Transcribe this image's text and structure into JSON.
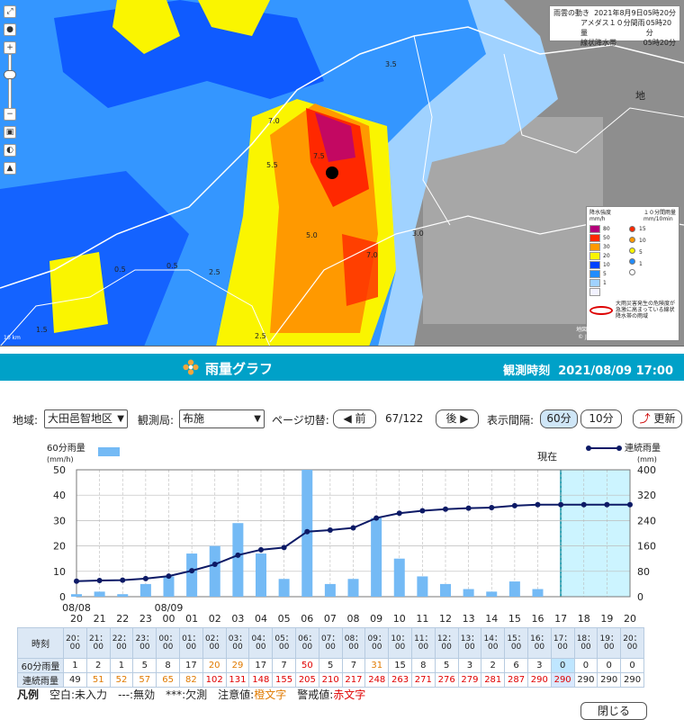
{
  "map": {
    "info_title": "雨雲の動き",
    "info_datetime": "2021年8月9日05時20分",
    "info_amedas_label": "アメダス１０分間雨量",
    "info_amedas_time": "05時20分",
    "info_line_label": "線状降水帯",
    "info_line_time": "05時20分",
    "legend_intensity_title": "降水強度",
    "legend_intensity_unit": "mm/h",
    "legend_amedas_title": "１０分間雨量",
    "legend_amedas_unit": "mm/10min",
    "intensity_levels": [
      {
        "label": "80",
        "color": "#b4007a"
      },
      {
        "label": "50",
        "color": "#ff2800"
      },
      {
        "label": "30",
        "color": "#ff9900"
      },
      {
        "label": "20",
        "color": "#faf500"
      },
      {
        "label": "10",
        "color": "#0041ff"
      },
      {
        "label": "5",
        "color": "#218cff"
      },
      {
        "label": "1",
        "color": "#a0d2ff"
      },
      {
        "label": "",
        "color": "#f2f2ff"
      }
    ],
    "amedas_levels": [
      {
        "label": "15",
        "color": "#ff2800"
      },
      {
        "label": "10",
        "color": "#ff9900"
      },
      {
        "label": "5",
        "color": "#faf500"
      },
      {
        "label": "1",
        "color": "#218cff"
      },
      {
        "label": "",
        "color": "#ffffff"
      }
    ],
    "legend_note": "大雨災害発生の危険度が急激に高まっている線状降水帯の雨域",
    "scale": "10 km",
    "credit_1": "地図出典：地理院タイル（加工して利用）",
    "credit_2": "© Japan Meteorological Agency 2020",
    "labels": [
      "0.5",
      "5.5",
      "7.0",
      "7.5",
      "5.0",
      "7.0",
      "2.5",
      "3.5",
      "0.5",
      "1.5",
      "2.5",
      "3.0",
      "地"
    ]
  },
  "header": {
    "title": "雨量グラフ",
    "observation_label": "観測時刻",
    "observation_time": "2021/08/09 17:00"
  },
  "controls": {
    "region_label": "地域:",
    "region_value": "大田邑智地区",
    "station_label": "観測局:",
    "station_value": "布施",
    "page_label": "ページ切替:",
    "prev_label": "◀ 前",
    "page_position": "67/122",
    "next_label": "後 ▶",
    "interval_label": "表示間隔:",
    "interval_60": "60分",
    "interval_10": "10分",
    "refresh_label": "更新"
  },
  "chart_data": {
    "type": "bar",
    "left_axis_title": "60分雨量",
    "left_axis_unit": "(mm/h)",
    "right_axis_title": "連続雨量",
    "right_axis_unit": "(mm)",
    "now_label": "現在",
    "left_ylim": [
      0,
      50
    ],
    "right_ylim": [
      0,
      400
    ],
    "left_ticks": [
      "0",
      "10",
      "20",
      "30",
      "40",
      "50"
    ],
    "right_ticks": [
      "0",
      "80",
      "160",
      "240",
      "320",
      "400"
    ],
    "x_labels": [
      "20",
      "21",
      "22",
      "23",
      "00",
      "01",
      "02",
      "03",
      "04",
      "05",
      "06",
      "07",
      "08",
      "09",
      "10",
      "11",
      "12",
      "13",
      "14",
      "15",
      "16",
      "17",
      "18",
      "19",
      "20"
    ],
    "date_labels": [
      {
        "text": "08/08",
        "index": 0
      },
      {
        "text": "08/09",
        "index": 4
      }
    ],
    "now_index": 21,
    "hourly_rain": [
      1,
      2,
      1,
      5,
      8,
      17,
      20,
      29,
      17,
      7,
      50,
      5,
      7,
      31,
      15,
      8,
      5,
      3,
      2,
      6,
      3,
      0,
      0,
      0,
      0
    ],
    "cumulative_rain": [
      49,
      51,
      52,
      57,
      65,
      82,
      102,
      131,
      148,
      155,
      205,
      210,
      217,
      248,
      263,
      271,
      276,
      279,
      281,
      287,
      290,
      290,
      290,
      290,
      290
    ],
    "bar_color": "#74baf5",
    "line_color": "#0d1a66"
  },
  "table": {
    "time_header": "時刻",
    "hourly_header": "60分雨量",
    "cumulative_header": "連続雨量",
    "times": [
      "20：00",
      "21：00",
      "22：00",
      "23：00",
      "00：00",
      "01：00",
      "02：00",
      "03：00",
      "04：00",
      "05：00",
      "06：00",
      "07：00",
      "08：00",
      "09：00",
      "10：00",
      "11：00",
      "12：00",
      "13：00",
      "14：00",
      "15：00",
      "16：00",
      "17：00",
      "18：00",
      "19：00",
      "20：00"
    ],
    "hourly": [
      "1",
      "2",
      "1",
      "5",
      "8",
      "17",
      "20",
      "29",
      "17",
      "7",
      "50",
      "5",
      "7",
      "31",
      "15",
      "8",
      "5",
      "3",
      "2",
      "6",
      "3",
      "0",
      "0",
      "0",
      "0"
    ],
    "cumulative": [
      "49",
      "51",
      "52",
      "57",
      "65",
      "82",
      "102",
      "131",
      "148",
      "155",
      "205",
      "210",
      "217",
      "248",
      "263",
      "271",
      "276",
      "279",
      "281",
      "287",
      "290",
      "290",
      "290",
      "290",
      "290"
    ],
    "hourly_class": [
      "",
      "",
      "",
      "",
      "",
      "",
      "warn",
      "warn",
      "",
      "",
      "alert",
      "",
      "",
      "warn",
      "",
      "",
      "",
      "",
      "",
      "",
      "",
      "",
      "",
      "",
      ""
    ],
    "cumulative_class": [
      "",
      "warn",
      "warn",
      "warn",
      "warn",
      "warn",
      "alert",
      "alert",
      "alert",
      "alert",
      "alert",
      "alert",
      "alert",
      "alert",
      "alert",
      "alert",
      "alert",
      "alert",
      "alert",
      "alert",
      "alert",
      "alert",
      "",
      "",
      ""
    ]
  },
  "legend": {
    "title": "凡例",
    "blank": "空白:未入力",
    "invalid": "---:無効",
    "missing": "***:欠測",
    "caution_prefix": "注意値:",
    "caution_value": "橙文字",
    "warning_prefix": "警戒値:",
    "warning_value": "赤文字"
  },
  "close_label": "閉じる"
}
